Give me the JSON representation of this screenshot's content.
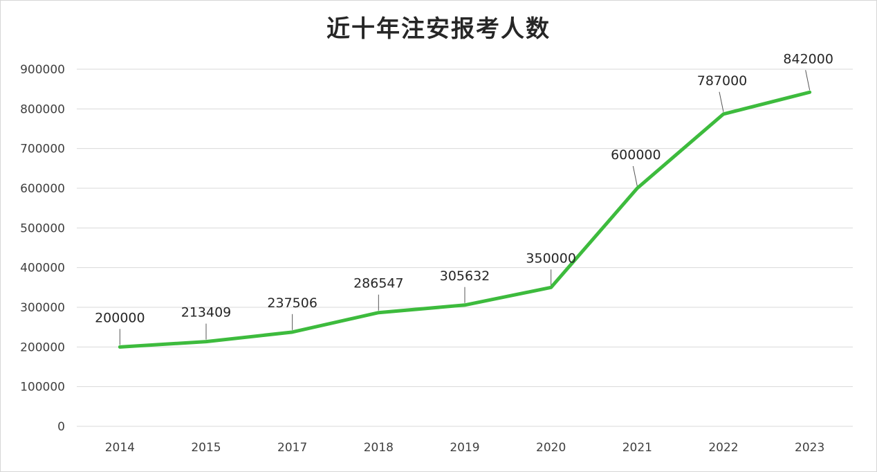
{
  "chart_data": {
    "type": "line",
    "title": "近十年注安报考人数",
    "categories": [
      "2014",
      "2015",
      "2017",
      "2018",
      "2019",
      "2020",
      "2021",
      "2022",
      "2023"
    ],
    "series": [
      {
        "values": [
          200000,
          213409,
          237506,
          286547,
          305632,
          350000,
          600000,
          787000,
          842000
        ]
      }
    ],
    "data_labels": [
      "200000",
      "213409",
      "237506",
      "286547",
      "305632",
      "350000",
      "600000",
      "787000",
      "842000"
    ],
    "ylim": [
      0,
      900000
    ],
    "yticks": [
      "0",
      "100000",
      "200000",
      "300000",
      "400000",
      "500000",
      "600000",
      "700000",
      "800000",
      "900000"
    ],
    "grid": true,
    "legend": "none",
    "line_color": "#3dbb3d",
    "gridline_color": "#d9d9d9"
  }
}
